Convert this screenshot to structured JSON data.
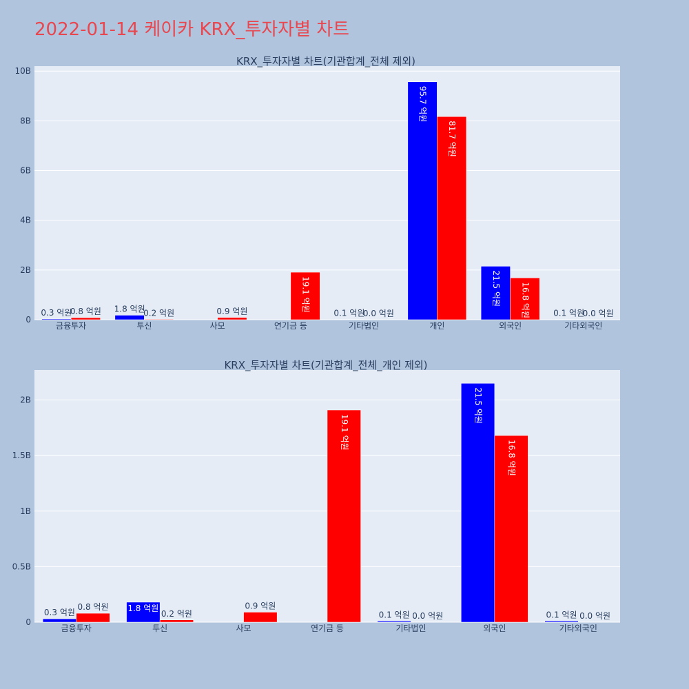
{
  "page": {
    "title": "2022-01-14 케이카 KRX_투자자별 차트"
  },
  "colors": {
    "buy": "#0000ff",
    "sell": "#ff0000",
    "plot_bg": "#e5ecf6",
    "page_bg": "#b0c4de",
    "title": "#e8474f"
  },
  "chart_data": [
    {
      "type": "bar",
      "title": "KRX_투자자별 차트(기관합계_전체 제외)",
      "categories": [
        "금융투자",
        "투신",
        "사모",
        "연기금 등",
        "기타법인",
        "개인",
        "외국인",
        "기타외국인"
      ],
      "series": [
        {
          "values": [
            30000000,
            180000000,
            0,
            0,
            10000000,
            9570000000,
            2150000000,
            10000000
          ],
          "labels": [
            "0.3 억원",
            "1.8 억원",
            "",
            "",
            "0.1 억원",
            "95.7 억원",
            "21.5 억원",
            "0.1 억원"
          ]
        },
        {
          "values": [
            80000000,
            20000000,
            90000000,
            1910000000,
            0,
            8170000000,
            1680000000,
            0
          ],
          "labels": [
            "0.8 억원",
            "0.2 억원",
            "0.9 억원",
            "19.1 억원",
            "0.0 억원",
            "81.7 억원",
            "16.8 억원",
            "0.0 억원"
          ]
        }
      ],
      "ylim": [
        0,
        10200000000
      ],
      "yticks": [
        0,
        2000000000,
        4000000000,
        6000000000,
        8000000000,
        10000000000
      ],
      "ytick_labels": [
        "0",
        "2B",
        "4B",
        "6B",
        "8B",
        "10B"
      ],
      "grid": true
    },
    {
      "type": "bar",
      "title": "KRX_투자자별 차트(기관합계_전체_개인 제외)",
      "categories": [
        "금융투자",
        "투신",
        "사모",
        "연기금 등",
        "기타법인",
        "외국인",
        "기타외국인"
      ],
      "series": [
        {
          "values": [
            30000000,
            180000000,
            0,
            0,
            10000000,
            2150000000,
            10000000
          ],
          "labels": [
            "0.3 억원",
            "1.8 억원",
            "",
            "",
            "0.1 억원",
            "21.5 억원",
            "0.1 억원"
          ]
        },
        {
          "values": [
            80000000,
            20000000,
            90000000,
            1910000000,
            0,
            1680000000,
            0
          ],
          "labels": [
            "0.8 억원",
            "0.2 억원",
            "0.9 억원",
            "19.1 억원",
            "0.0 억원",
            "16.8 억원",
            "0.0 억원"
          ]
        }
      ],
      "ylim": [
        0,
        2270000000
      ],
      "yticks": [
        0,
        500000000,
        1000000000,
        1500000000,
        2000000000
      ],
      "ytick_labels": [
        "0",
        "0.5B",
        "1B",
        "1.5B",
        "2B"
      ],
      "grid": true
    }
  ]
}
